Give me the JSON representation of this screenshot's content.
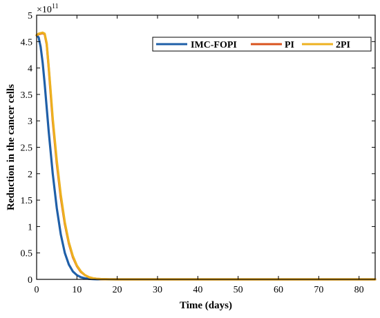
{
  "chart_data": {
    "type": "line",
    "title": "",
    "xlabel": "Time (days)",
    "ylabel": "Reduction in the cancer cells",
    "y_multiplier": {
      "base": "×10",
      "exponent": "11"
    },
    "xlim": [
      0,
      84
    ],
    "ylim": [
      0,
      5
    ],
    "xticks": [
      0,
      10,
      20,
      30,
      40,
      50,
      60,
      70,
      80
    ],
    "yticks": [
      0,
      0.5,
      1,
      1.5,
      2,
      2.5,
      3,
      3.5,
      4,
      4.5,
      5
    ],
    "ytick_labels": [
      "0",
      "0.5",
      "1",
      "1.5",
      "2",
      "2.5",
      "3",
      "3.5",
      "4",
      "4.5",
      "5"
    ],
    "grid": false,
    "legend_position": "top-right",
    "series": [
      {
        "name": "IMC-FOPI",
        "color": "#1f5fa8",
        "x": [
          0,
          0.5,
          1,
          1.5,
          2,
          3,
          4,
          5,
          6,
          7,
          8,
          9,
          10,
          11,
          12,
          13,
          14,
          15,
          16,
          17,
          18,
          20,
          84
        ],
        "y": [
          4.62,
          4.58,
          4.4,
          4.1,
          3.7,
          2.8,
          2.0,
          1.35,
          0.85,
          0.5,
          0.28,
          0.15,
          0.08,
          0.04,
          0.02,
          0.01,
          0.005,
          0.002,
          0.001,
          0.0005,
          0.0002,
          0,
          0
        ]
      },
      {
        "name": "PI",
        "color": "#d9531e",
        "x": [
          0,
          0.5,
          1,
          1.5,
          2,
          2.5,
          3,
          3.5,
          4,
          5,
          6,
          7,
          8,
          9,
          10,
          11,
          12,
          13,
          14,
          15,
          16,
          18,
          20,
          84
        ],
        "y": [
          4.62,
          4.64,
          4.65,
          4.66,
          4.64,
          4.45,
          4.0,
          3.5,
          3.0,
          2.2,
          1.55,
          1.05,
          0.68,
          0.42,
          0.25,
          0.14,
          0.08,
          0.04,
          0.02,
          0.01,
          0.005,
          0.001,
          0,
          0
        ]
      },
      {
        "name": "2PI",
        "color": "#edb120",
        "x": [
          0,
          0.5,
          1,
          1.5,
          2,
          2.5,
          3,
          3.5,
          4,
          5,
          6,
          7,
          8,
          9,
          10,
          11,
          12,
          13,
          14,
          15,
          16,
          18,
          20,
          84
        ],
        "y": [
          4.62,
          4.65,
          4.66,
          4.67,
          4.65,
          4.47,
          4.03,
          3.55,
          3.05,
          2.25,
          1.6,
          1.08,
          0.7,
          0.44,
          0.26,
          0.15,
          0.08,
          0.04,
          0.02,
          0.01,
          0.005,
          0.001,
          0,
          0
        ]
      }
    ]
  }
}
